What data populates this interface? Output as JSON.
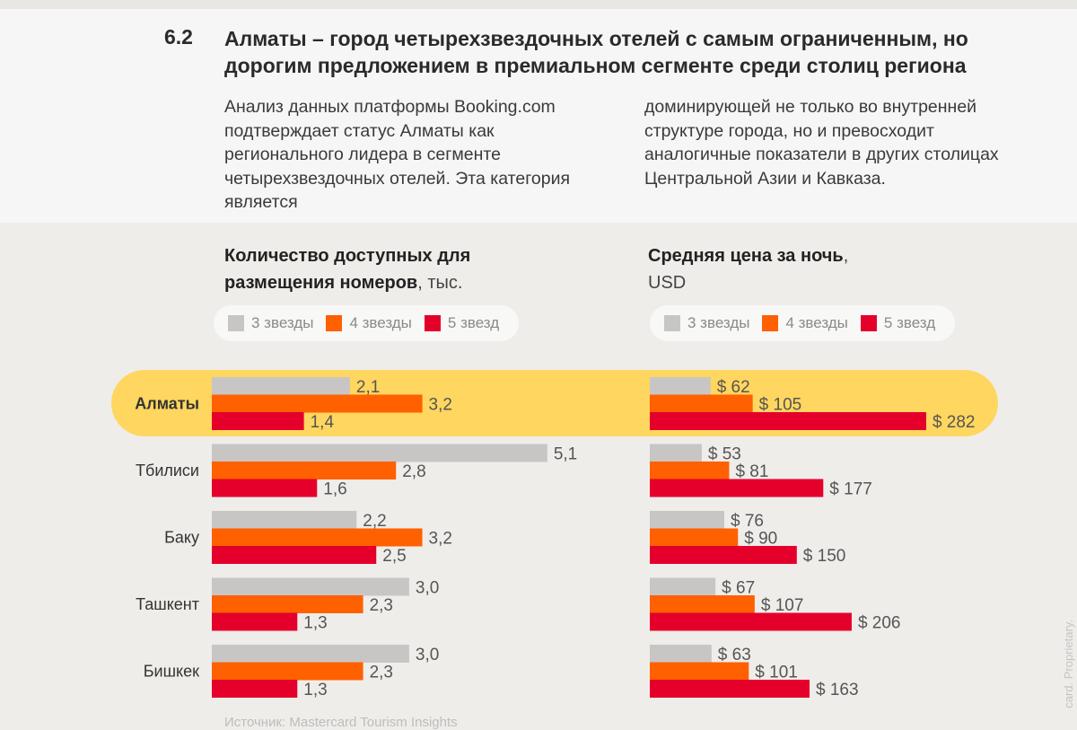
{
  "section": {
    "number": "6.2",
    "title": "Алматы – город четырехзвездочных отелей с самым ограниченным, но дорогим предложением в премиальном сегменте среди столиц региона"
  },
  "intro": {
    "left": "Анализ данных платформы Booking.com подтверждает статус Алматы как регионального лидера в сегменте четырехзвездочных отелей. Эта категория является",
    "right": "доминирующей не только во внутренней структуре города, но и превосходит аналогичные показатели в других столицах Центральной Азии и Кавказа."
  },
  "chart_left": {
    "title_bold_1": "Количество доступных для",
    "title_bold_2": "размещения номеров",
    "title_suffix": ", тыс."
  },
  "chart_right": {
    "title_bold": "Средняя цена за ночь",
    "title_suffix": ",",
    "unit": "USD"
  },
  "legend": {
    "labels": [
      "3 звезды",
      "4 звезды",
      "5 звезд"
    ],
    "colors": [
      "#c8c6c5",
      "#ff6000",
      "#e4002b"
    ]
  },
  "highlight_color": "#ffd65f",
  "chart_data": [
    {
      "type": "bar",
      "orientation": "horizontal",
      "title": "Количество доступных для размещения номеров, тыс.",
      "categories": [
        "Алматы",
        "Тбилиси",
        "Баку",
        "Ташкент",
        "Бишкек"
      ],
      "highlighted_category": "Алматы",
      "series": [
        {
          "name": "3 звезды",
          "values": [
            2.1,
            5.1,
            2.2,
            3.0,
            3.0
          ],
          "labels": [
            "2,1",
            "5,1",
            "2,2",
            "3,0",
            "3,0"
          ]
        },
        {
          "name": "4 звезды",
          "values": [
            3.2,
            2.8,
            3.2,
            2.3,
            2.3
          ],
          "labels": [
            "3,2",
            "2,8",
            "3,2",
            "2,3",
            "2,3"
          ]
        },
        {
          "name": "5 звезд",
          "values": [
            1.4,
            1.6,
            2.5,
            1.3,
            1.3
          ],
          "labels": [
            "1,4",
            "1,6",
            "2,5",
            "1,3",
            "1,3"
          ]
        }
      ]
    },
    {
      "type": "bar",
      "orientation": "horizontal",
      "title": "Средняя цена за ночь, USD",
      "categories": [
        "Алматы",
        "Тбилиси",
        "Баку",
        "Ташкент",
        "Бишкек"
      ],
      "highlighted_category": "Алматы",
      "series": [
        {
          "name": "3 звезды",
          "values": [
            62,
            53,
            76,
            67,
            63
          ],
          "labels": [
            "$ 62",
            "$ 53",
            "$ 76",
            "$ 67",
            "$ 63"
          ]
        },
        {
          "name": "4 звезды",
          "values": [
            105,
            81,
            90,
            107,
            101
          ],
          "labels": [
            "$ 105",
            "$ 81",
            "$ 90",
            "$ 107",
            "$ 101"
          ]
        },
        {
          "name": "5 звезд",
          "values": [
            282,
            177,
            150,
            206,
            163
          ],
          "labels": [
            "$ 282",
            "$ 177",
            "$ 150",
            "$ 206",
            "$ 163"
          ]
        }
      ]
    }
  ],
  "source_text": "Источник: Mastercard Tourism Insights",
  "side_text": "card. Proprietary."
}
